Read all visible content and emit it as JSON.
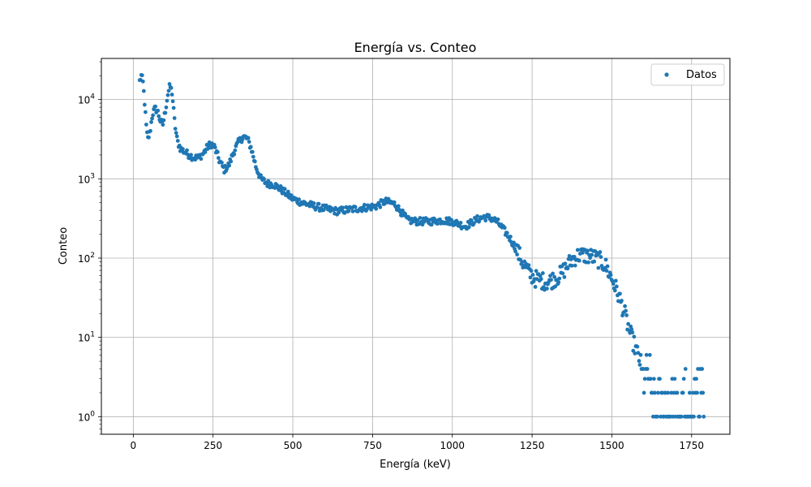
{
  "chart_data": {
    "type": "scatter",
    "title": "Energía vs. Conteo",
    "xlabel": "Energía (keV)",
    "ylabel": "Conteo",
    "xlim": [
      -100,
      1870
    ],
    "ylim": [
      0.6,
      33000
    ],
    "yscale": "log",
    "grid": true,
    "legend": {
      "placement": "top-right",
      "entries": [
        "Datos"
      ]
    },
    "colors": {
      "series": "#1f77b4",
      "grid": "#b0b0b0"
    },
    "x_ticks": [
      0,
      250,
      500,
      750,
      1000,
      1250,
      1500,
      1750
    ],
    "x_tick_labels": [
      "0",
      "250",
      "500",
      "750",
      "1000",
      "1250",
      "1500",
      "1750"
    ],
    "y_ticks": [
      1,
      10,
      100,
      1000,
      10000
    ],
    "y_tick_exponents": [
      "0",
      "1",
      "2",
      "3",
      "4"
    ],
    "y_tick_base": "10",
    "series": [
      {
        "name": "Datos",
        "anchors": [
          [
            20,
            17000
          ],
          [
            25,
            20000
          ],
          [
            30,
            17000
          ],
          [
            35,
            10000
          ],
          [
            40,
            5000
          ],
          [
            45,
            3100
          ],
          [
            52,
            3800
          ],
          [
            60,
            6500
          ],
          [
            68,
            7700
          ],
          [
            76,
            7200
          ],
          [
            84,
            5500
          ],
          [
            92,
            4700
          ],
          [
            100,
            7000
          ],
          [
            108,
            11500
          ],
          [
            115,
            15000
          ],
          [
            122,
            12000
          ],
          [
            130,
            5000
          ],
          [
            138,
            3000
          ],
          [
            148,
            2400
          ],
          [
            160,
            2200
          ],
          [
            175,
            2000
          ],
          [
            190,
            1850
          ],
          [
            205,
            1850
          ],
          [
            220,
            2100
          ],
          [
            235,
            2600
          ],
          [
            245,
            2750
          ],
          [
            255,
            2500
          ],
          [
            270,
            1700
          ],
          [
            285,
            1300
          ],
          [
            300,
            1500
          ],
          [
            315,
            2200
          ],
          [
            330,
            2900
          ],
          [
            345,
            3400
          ],
          [
            358,
            3200
          ],
          [
            370,
            2400
          ],
          [
            385,
            1400
          ],
          [
            400,
            1000
          ],
          [
            420,
            870
          ],
          [
            440,
            850
          ],
          [
            460,
            750
          ],
          [
            480,
            650
          ],
          [
            500,
            560
          ],
          [
            530,
            500
          ],
          [
            560,
            460
          ],
          [
            600,
            420
          ],
          [
            640,
            390
          ],
          [
            680,
            410
          ],
          [
            720,
            430
          ],
          [
            760,
            450
          ],
          [
            790,
            520
          ],
          [
            820,
            480
          ],
          [
            840,
            380
          ],
          [
            860,
            300
          ],
          [
            890,
            290
          ],
          [
            930,
            290
          ],
          [
            970,
            300
          ],
          [
            1000,
            290
          ],
          [
            1020,
            270
          ],
          [
            1040,
            250
          ],
          [
            1060,
            280
          ],
          [
            1080,
            310
          ],
          [
            1100,
            330
          ],
          [
            1120,
            320
          ],
          [
            1140,
            290
          ],
          [
            1160,
            230
          ],
          [
            1180,
            180
          ],
          [
            1200,
            130
          ],
          [
            1220,
            90
          ],
          [
            1240,
            65
          ],
          [
            1260,
            55
          ],
          [
            1280,
            52
          ],
          [
            1300,
            50
          ],
          [
            1320,
            55
          ],
          [
            1340,
            62
          ],
          [
            1360,
            80
          ],
          [
            1380,
            100
          ],
          [
            1400,
            110
          ],
          [
            1420,
            108
          ],
          [
            1440,
            103
          ],
          [
            1460,
            95
          ],
          [
            1480,
            80
          ],
          [
            1500,
            55
          ],
          [
            1520,
            35
          ],
          [
            1540,
            20
          ],
          [
            1555,
            12
          ],
          [
            1570,
            8
          ],
          [
            1582,
            6
          ],
          [
            1595,
            4
          ],
          [
            1610,
            3
          ],
          [
            1640,
            2.5
          ],
          [
            1680,
            2
          ],
          [
            1720,
            1.7
          ],
          [
            1760,
            1.5
          ],
          [
            1790,
            1.2
          ]
        ]
      }
    ]
  }
}
